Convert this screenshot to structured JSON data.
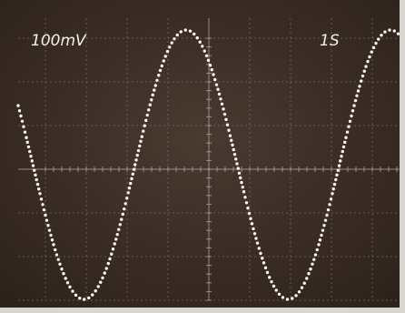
{
  "screen": {
    "vertical_scale": "100mV",
    "time_scale": "1S"
  }
}
